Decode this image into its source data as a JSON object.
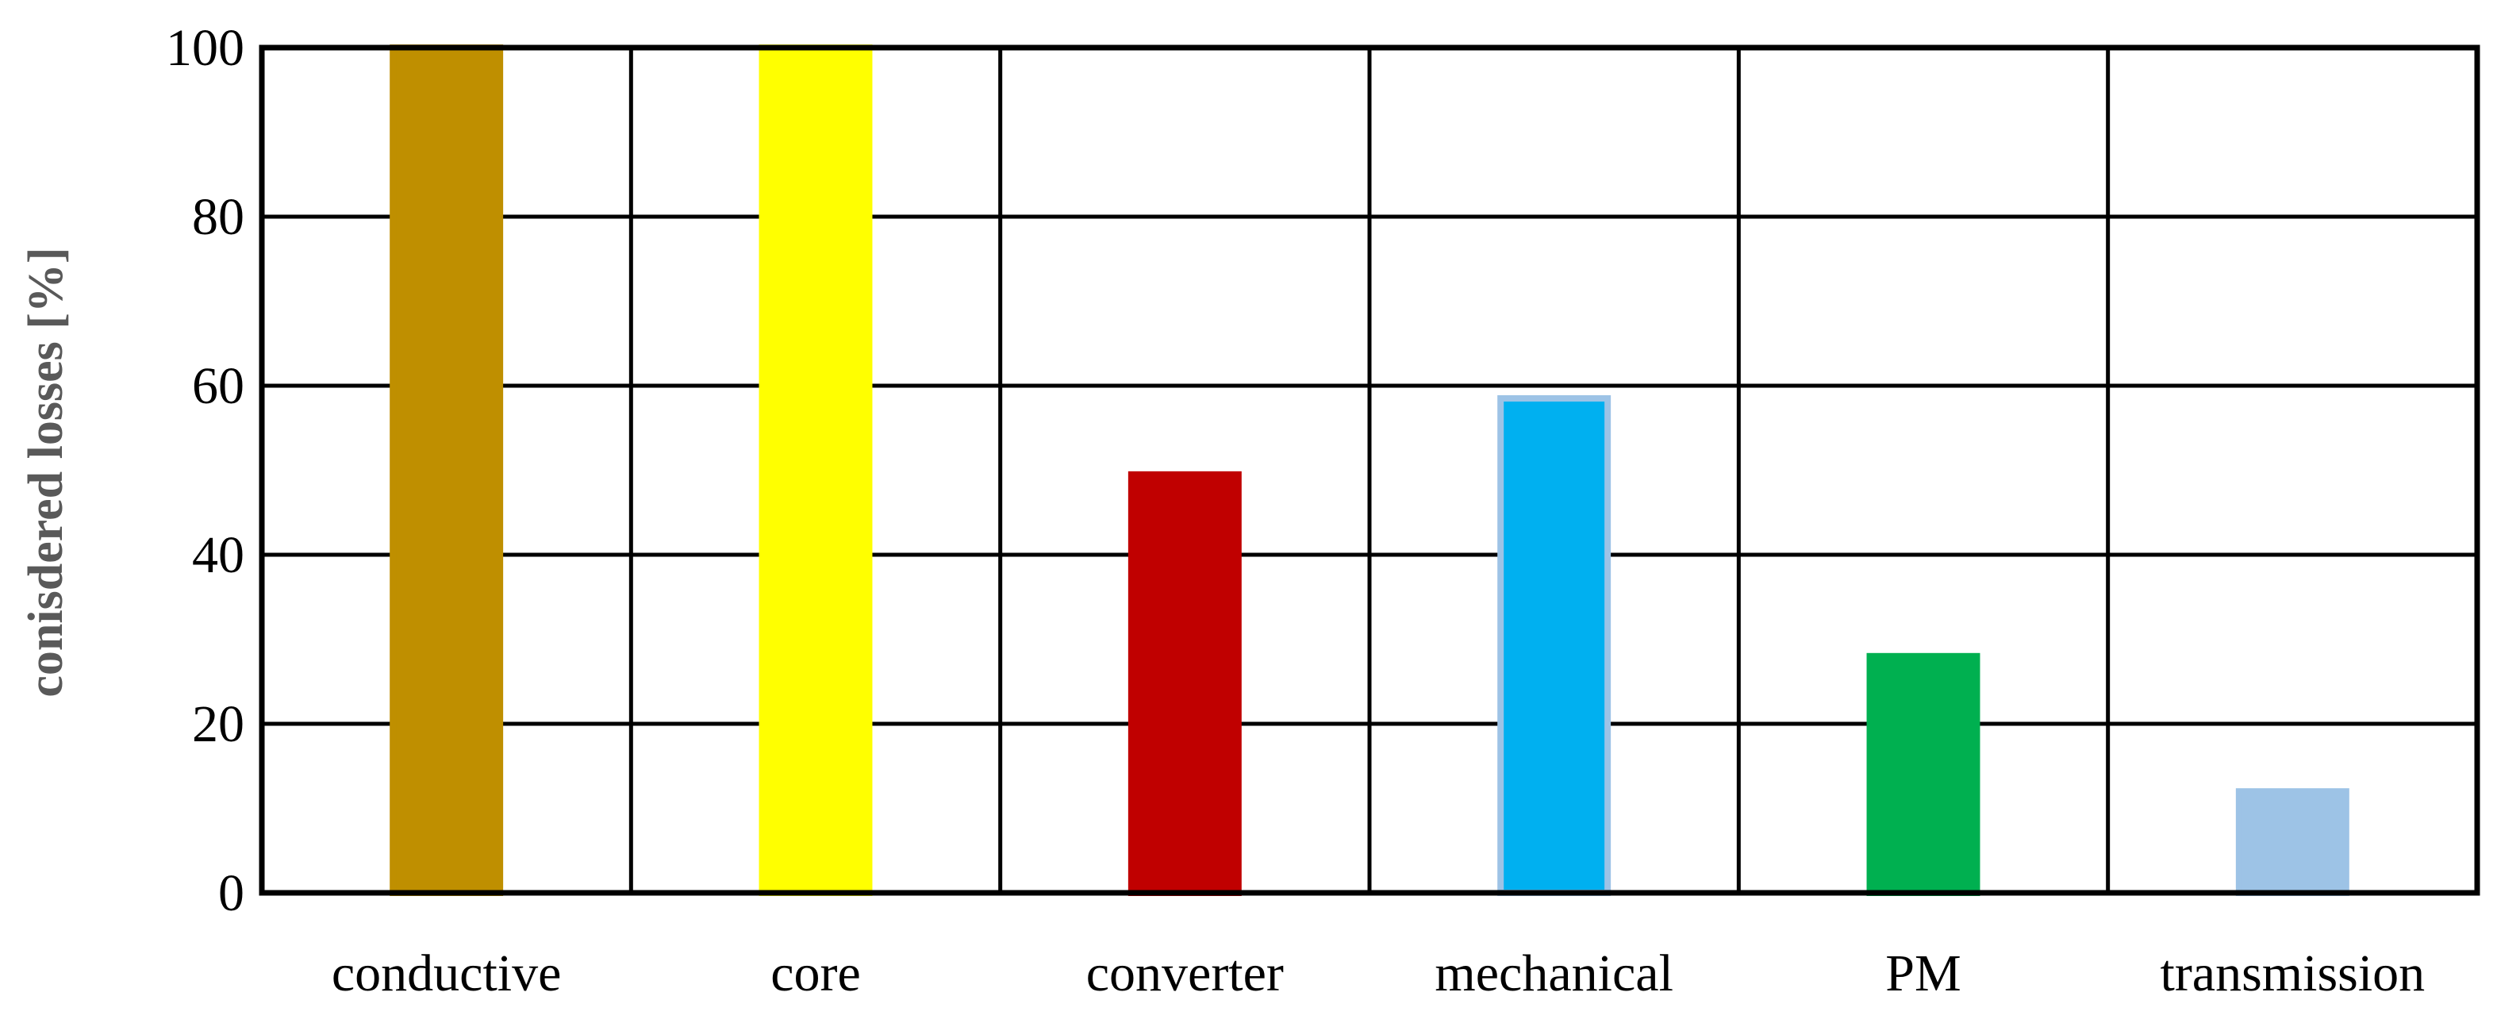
{
  "chart_data": {
    "type": "bar",
    "title": "",
    "xlabel": "",
    "ylabel": "conisdered losses [%]",
    "ylim": [
      0,
      100
    ],
    "yticks": [
      0,
      20,
      40,
      60,
      80,
      100
    ],
    "grid": true,
    "legend": "none",
    "categories": [
      "conductive",
      "core",
      "converter",
      "mechanical",
      "PM",
      "transmission"
    ],
    "values": [
      100,
      100,
      49.5,
      58.5,
      28,
      12
    ],
    "colors": [
      "#BF8F00",
      "#FFFF00",
      "#C00000",
      "#00B0F0",
      "#00B050",
      "#9DC3E6"
    ],
    "edge_colors": [
      "#BF8F00",
      "#FFFF00",
      "#C00000",
      "#9DC3E6",
      "#00B050",
      "#9DC3E6"
    ]
  }
}
